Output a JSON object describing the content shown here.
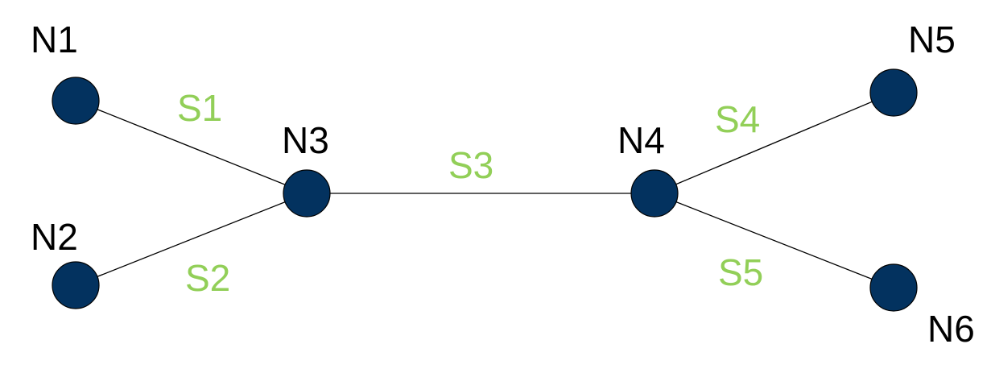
{
  "colors": {
    "node_fill": "#03325F",
    "edge_label": "#92CF58",
    "edge_line": "#000000",
    "node_label": "#000000"
  },
  "nodes": [
    {
      "id": "n1",
      "label": "N1"
    },
    {
      "id": "n2",
      "label": "N2"
    },
    {
      "id": "n3",
      "label": "N3"
    },
    {
      "id": "n4",
      "label": "N4"
    },
    {
      "id": "n5",
      "label": "N5"
    },
    {
      "id": "n6",
      "label": "N6"
    }
  ],
  "edges": [
    {
      "id": "s1",
      "label": "S1",
      "from": "n1",
      "to": "n3"
    },
    {
      "id": "s2",
      "label": "S2",
      "from": "n2",
      "to": "n3"
    },
    {
      "id": "s3",
      "label": "S3",
      "from": "n3",
      "to": "n4"
    },
    {
      "id": "s4",
      "label": "S4",
      "from": "n4",
      "to": "n5"
    },
    {
      "id": "s5",
      "label": "S5",
      "from": "n4",
      "to": "n6"
    }
  ]
}
